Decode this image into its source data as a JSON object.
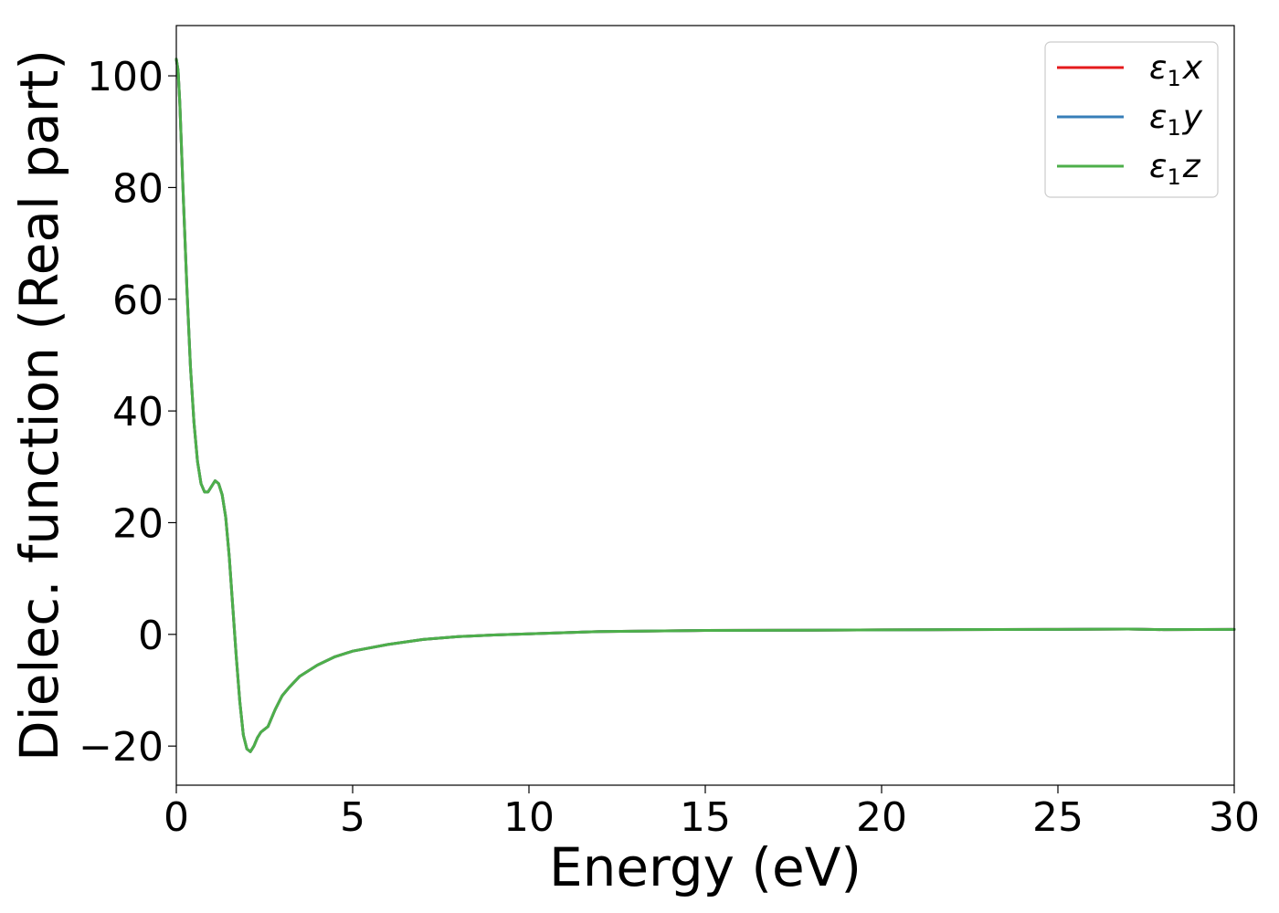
{
  "chart_data": {
    "type": "line",
    "xlabel": "Energy (eV)",
    "ylabel": "Dielec. function (Real part)",
    "xlim": [
      0,
      30
    ],
    "ylim": [
      -27,
      109
    ],
    "xticks": [
      0,
      5,
      10,
      15,
      20,
      25,
      30
    ],
    "xtick_labels": [
      "0",
      "5",
      "10",
      "15",
      "20",
      "25",
      "30"
    ],
    "yticks": [
      -20,
      0,
      20,
      40,
      60,
      80,
      100
    ],
    "ytick_labels": [
      "−20",
      "0",
      "20",
      "40",
      "60",
      "80",
      "100"
    ],
    "grid": false,
    "legend_position": "top-right",
    "series": [
      {
        "name": "ε1x",
        "label_main": "ε",
        "label_sub": "1",
        "label_var": "x",
        "color": "#e41a1c",
        "x": [
          0,
          0.05,
          0.1,
          0.2,
          0.3,
          0.4,
          0.5,
          0.6,
          0.7,
          0.8,
          0.9,
          1.0,
          1.1,
          1.2,
          1.3,
          1.4,
          1.5,
          1.6,
          1.7,
          1.8,
          1.9,
          2.0,
          2.1,
          2.2,
          2.3,
          2.4,
          2.5,
          2.6,
          2.7,
          2.8,
          3.0,
          3.2,
          3.5,
          4.0,
          4.5,
          5.0,
          6.0,
          7.0,
          8.0,
          9.0,
          10.0,
          12.0,
          15.0,
          18.0,
          20.0,
          22.0,
          25.0,
          27.0,
          28.0,
          30.0
        ],
        "y": [
          103,
          101,
          95,
          78,
          62,
          48,
          38,
          31,
          27,
          25.5,
          25.5,
          26.5,
          27.5,
          27,
          25,
          21,
          14,
          5,
          -4,
          -12,
          -18,
          -20.5,
          -21,
          -20,
          -18.5,
          -17.5,
          -17,
          -16.5,
          -15,
          -13.5,
          -11,
          -9.5,
          -7.5,
          -5.5,
          -4,
          -3,
          -1.8,
          -0.9,
          -0.4,
          -0.1,
          0.1,
          0.5,
          0.7,
          0.75,
          0.8,
          0.85,
          0.9,
          0.95,
          0.85,
          0.9
        ]
      },
      {
        "name": "ε1y",
        "label_main": "ε",
        "label_sub": "1",
        "label_var": "y",
        "color": "#377eb8",
        "x": [
          0,
          0.05,
          0.1,
          0.2,
          0.3,
          0.4,
          0.5,
          0.6,
          0.7,
          0.8,
          0.9,
          1.0,
          1.1,
          1.2,
          1.3,
          1.4,
          1.5,
          1.6,
          1.7,
          1.8,
          1.9,
          2.0,
          2.1,
          2.2,
          2.3,
          2.4,
          2.5,
          2.6,
          2.7,
          2.8,
          3.0,
          3.2,
          3.5,
          4.0,
          4.5,
          5.0,
          6.0,
          7.0,
          8.0,
          9.0,
          10.0,
          12.0,
          15.0,
          18.0,
          20.0,
          22.0,
          25.0,
          27.0,
          28.0,
          30.0
        ],
        "y": [
          103,
          101,
          95,
          78,
          62,
          48,
          38,
          31,
          27,
          25.5,
          25.5,
          26.5,
          27.5,
          27,
          25,
          21,
          14,
          5,
          -4,
          -12,
          -18,
          -20.5,
          -21,
          -20,
          -18.5,
          -17.5,
          -17,
          -16.5,
          -15,
          -13.5,
          -11,
          -9.5,
          -7.5,
          -5.5,
          -4,
          -3,
          -1.8,
          -0.9,
          -0.4,
          -0.1,
          0.1,
          0.5,
          0.7,
          0.75,
          0.8,
          0.85,
          0.9,
          0.95,
          0.85,
          0.9
        ]
      },
      {
        "name": "ε1z",
        "label_main": "ε",
        "label_sub": "1",
        "label_var": "z",
        "color": "#4daf4a",
        "x": [
          0,
          0.05,
          0.1,
          0.2,
          0.3,
          0.4,
          0.5,
          0.6,
          0.7,
          0.8,
          0.9,
          1.0,
          1.1,
          1.2,
          1.3,
          1.4,
          1.5,
          1.6,
          1.7,
          1.8,
          1.9,
          2.0,
          2.1,
          2.2,
          2.3,
          2.4,
          2.5,
          2.6,
          2.7,
          2.8,
          3.0,
          3.2,
          3.5,
          4.0,
          4.5,
          5.0,
          6.0,
          7.0,
          8.0,
          9.0,
          10.0,
          12.0,
          15.0,
          18.0,
          20.0,
          22.0,
          25.0,
          27.0,
          28.0,
          30.0
        ],
        "y": [
          103,
          101,
          95,
          78,
          62,
          48,
          38,
          31,
          27,
          25.5,
          25.5,
          26.5,
          27.5,
          27,
          25,
          21,
          14,
          5,
          -4,
          -12,
          -18,
          -20.5,
          -21,
          -20,
          -18.5,
          -17.5,
          -17,
          -16.5,
          -15,
          -13.5,
          -11,
          -9.5,
          -7.5,
          -5.5,
          -4,
          -3,
          -1.8,
          -0.9,
          -0.4,
          -0.1,
          0.1,
          0.5,
          0.7,
          0.75,
          0.8,
          0.85,
          0.9,
          0.95,
          0.85,
          0.9
        ]
      }
    ]
  }
}
